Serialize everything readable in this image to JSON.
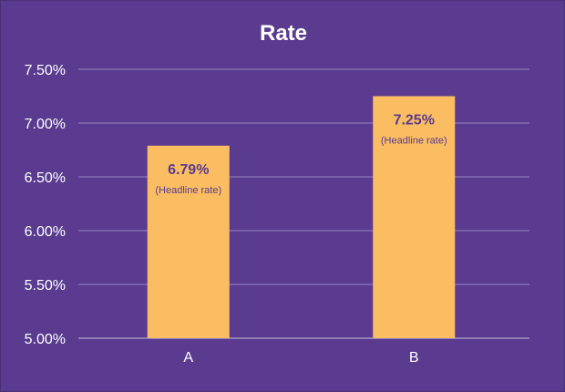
{
  "chart_data": {
    "type": "bar",
    "title": "Rate",
    "categories": [
      "A",
      "B"
    ],
    "values": [
      6.79,
      7.25
    ],
    "data_labels": [
      "6.79%",
      "7.25%"
    ],
    "data_sublabels": [
      "(Headline rate)",
      "(Headline rate)"
    ],
    "ylim": [
      5.0,
      7.5
    ],
    "yticks": [
      "5.00%",
      "5.50%",
      "6.00%",
      "6.50%",
      "7.00%",
      "7.50%"
    ],
    "ytick_values": [
      5.0,
      5.5,
      6.0,
      6.5,
      7.0,
      7.5
    ],
    "grid": true,
    "xlabel": "",
    "ylabel": "",
    "colors": {
      "background": "#5a3b8f",
      "bar": "#fbbd62",
      "label": "#5a3b8f",
      "grid": "#9b85c4",
      "text": "#ffffff"
    }
  }
}
